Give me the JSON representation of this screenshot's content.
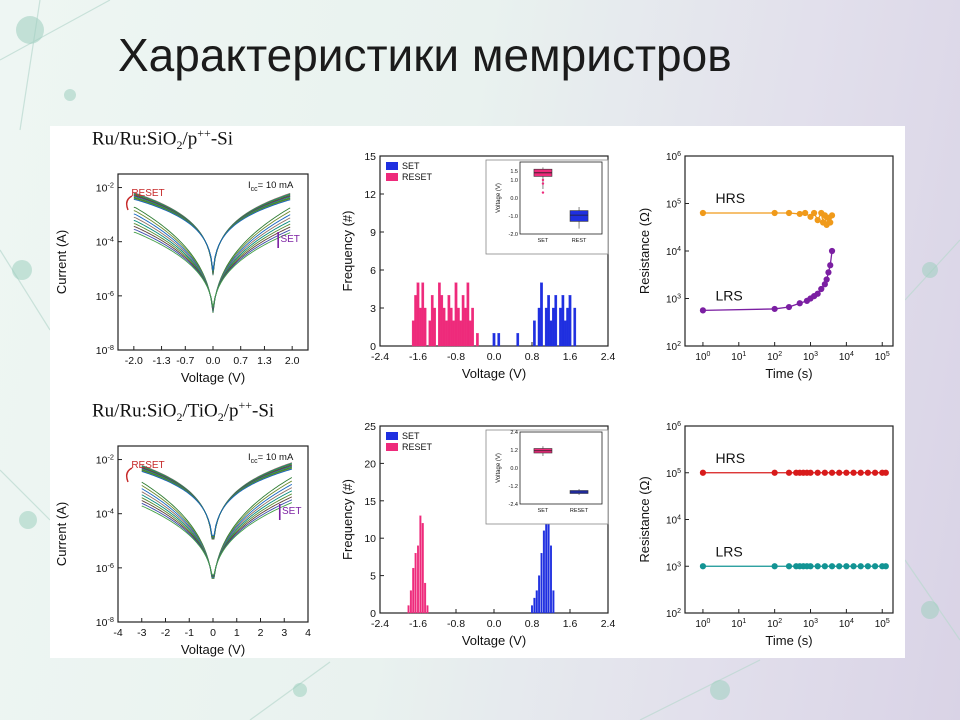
{
  "slide": {
    "title": "Характеристики мемристров"
  },
  "colors": {
    "set": "#1f2fe0",
    "reset": "#ee2a7b",
    "hrs_top": "#f09a1a",
    "lrs_top": "#7b1fa2",
    "hrs_bottom": "#d81b1b",
    "lrs_bottom": "#139494",
    "sweep": "#2e7d32"
  },
  "chart_data": [
    {
      "id": "iv_top",
      "type": "line",
      "title_parts": [
        "Ru/Ru:SiO",
        "2",
        "/p",
        "++",
        "-Si"
      ],
      "xlabel": "Voltage (V)",
      "ylabel": "Current (A)",
      "xlim": [
        -2.4,
        2.4
      ],
      "ylim_log": [
        -8,
        -1.5
      ],
      "xticks": [
        "-2.0",
        "-1.3",
        "-0.7",
        "0.0",
        "0.7",
        "1.3",
        "2.0"
      ],
      "xtick_values": [
        -2.0,
        -1.3,
        -0.7,
        0.0,
        0.7,
        1.3,
        2.0
      ],
      "yticks": [
        "10",
        "10",
        "10",
        "10"
      ],
      "ytick_exps": [
        "-8",
        "-6",
        "-4",
        "-2"
      ],
      "ytick_values": [
        -8,
        -6,
        -4,
        -2
      ],
      "compliance": {
        "prefix": "I",
        "sub": "cc",
        "suffix": "= 10 mA"
      },
      "annotations": [
        "RESET",
        "SET"
      ],
      "vset": 2.0,
      "vreset": -2.0,
      "icc_log": -2.2
    },
    {
      "id": "hist_top",
      "type": "bar",
      "xlabel": "Voltage (V)",
      "ylabel": "Frequency (#)",
      "xlim": [
        -2.4,
        2.4
      ],
      "ylim": [
        0,
        15
      ],
      "xticks": [
        "-2.4",
        "-1.6",
        "-0.8",
        "0.0",
        "0.8",
        "1.6",
        "2.4"
      ],
      "xtick_values": [
        -2.4,
        -1.6,
        -0.8,
        0.0,
        0.8,
        1.6,
        2.4
      ],
      "yticks": [
        "0",
        "3",
        "6",
        "9",
        "12",
        "15"
      ],
      "ytick_values": [
        0,
        3,
        6,
        9,
        12,
        15
      ],
      "legend": [
        "SET",
        "RESET"
      ],
      "bar_width": 0.05,
      "series": [
        {
          "name": "SET",
          "x": [
            0.0,
            0.1,
            0.5,
            0.85,
            0.95,
            1.0,
            1.1,
            1.15,
            1.2,
            1.25,
            1.3,
            1.4,
            1.45,
            1.5,
            1.55,
            1.6,
            1.7
          ],
          "y": [
            1,
            1,
            1,
            2,
            3,
            5,
            3,
            4,
            2,
            3,
            4,
            3,
            4,
            2,
            3,
            4,
            3
          ]
        },
        {
          "name": "RESET",
          "x": [
            -1.7,
            -1.65,
            -1.6,
            -1.55,
            -1.5,
            -1.45,
            -1.35,
            -1.3,
            -1.25,
            -1.15,
            -1.1,
            -1.05,
            -1.0,
            -0.95,
            -0.9,
            -0.85,
            -0.8,
            -0.75,
            -0.7,
            -0.65,
            -0.6,
            -0.55,
            -0.5,
            -0.45,
            -0.35
          ],
          "y": [
            2,
            4,
            5,
            3,
            5,
            3,
            2,
            4,
            3,
            5,
            4,
            3,
            2,
            4,
            3,
            2,
            5,
            3,
            2,
            4,
            3,
            5,
            2,
            3,
            1
          ]
        }
      ],
      "inset": {
        "xlabel_cats": [
          "SET",
          "REST"
        ],
        "ylabel": "Voltage (V)",
        "yticks": [
          "1.5",
          "1.0",
          "0.0",
          "-1.0",
          "-2.0"
        ],
        "ytick_values": [
          1.5,
          1.0,
          0.0,
          -1.0,
          -2.0
        ],
        "ylim": [
          -2.0,
          2.0
        ],
        "boxes": [
          {
            "cat": "SET",
            "q1": 1.2,
            "median": 1.4,
            "q3": 1.6,
            "min": 0.5,
            "max": 1.7,
            "outliers": [
              0.3,
              0.8,
              1.0
            ]
          },
          {
            "cat": "REST",
            "q1": -1.3,
            "median": -0.95,
            "q3": -0.7,
            "min": -1.7,
            "max": -0.5,
            "outliers": []
          }
        ]
      }
    },
    {
      "id": "ret_top",
      "type": "scatter",
      "xlabel": "Time (s)",
      "ylabel": "Resistance (Ω)",
      "xlim_log": [
        -0.5,
        5.3
      ],
      "ylim_log": [
        2,
        6
      ],
      "xticks": [
        "10",
        "10",
        "10",
        "10",
        "10",
        "10"
      ],
      "xtick_exps": [
        "0",
        "1",
        "2",
        "3",
        "4",
        "5"
      ],
      "xtick_values": [
        0,
        1,
        2,
        3,
        4,
        5
      ],
      "yticks": [
        "10",
        "10",
        "10",
        "10",
        "10"
      ],
      "ytick_exps": [
        "2",
        "3",
        "4",
        "5",
        "6"
      ],
      "ytick_values": [
        2,
        3,
        4,
        5,
        6
      ],
      "series": [
        {
          "name": "HRS",
          "log_t": [
            0,
            2,
            2.4,
            2.7,
            2.85,
            3.0,
            3.1,
            3.2,
            3.3,
            3.35,
            3.4,
            3.45,
            3.5,
            3.55,
            3.6
          ],
          "log_r": [
            4.8,
            4.8,
            4.8,
            4.78,
            4.8,
            4.72,
            4.8,
            4.65,
            4.8,
            4.6,
            4.75,
            4.55,
            4.7,
            4.6,
            4.75
          ]
        },
        {
          "name": "LRS",
          "log_t": [
            0,
            2,
            2.4,
            2.7,
            2.9,
            3.0,
            3.1,
            3.2,
            3.3,
            3.4,
            3.45,
            3.5,
            3.55,
            3.6
          ],
          "log_r": [
            2.75,
            2.78,
            2.82,
            2.9,
            2.95,
            3.0,
            3.05,
            3.1,
            3.2,
            3.3,
            3.4,
            3.55,
            3.7,
            4.0
          ]
        }
      ]
    },
    {
      "id": "iv_bottom",
      "type": "line",
      "title_parts": [
        "Ru/Ru:SiO",
        "2",
        "/TiO",
        "2",
        "/p",
        "++",
        "-Si"
      ],
      "xlabel": "Voltage (V)",
      "ylabel": "Current (A)",
      "xlim": [
        -4,
        4
      ],
      "ylim_log": [
        -8,
        -1.5
      ],
      "xticks": [
        "-4",
        "-3",
        "-2",
        "-1",
        "0",
        "1",
        "2",
        "3",
        "4"
      ],
      "xtick_values": [
        -4,
        -3,
        -2,
        -1,
        0,
        1,
        2,
        3,
        4
      ],
      "yticks": [
        "10",
        "10",
        "10",
        "10"
      ],
      "ytick_exps": [
        "-8",
        "-6",
        "-4",
        "-2"
      ],
      "ytick_values": [
        -8,
        -6,
        -4,
        -2
      ],
      "compliance": {
        "prefix": "I",
        "sub": "cc",
        "suffix": "= 10 mA"
      },
      "annotations": [
        "RESET",
        "SET"
      ],
      "vset": 3.4,
      "vreset": -3.0,
      "icc_log": -2.1
    },
    {
      "id": "hist_bottom",
      "type": "bar",
      "xlabel": "Voltage (V)",
      "ylabel": "Frequency (#)",
      "xlim": [
        -2.4,
        2.4
      ],
      "ylim": [
        0,
        25
      ],
      "xticks": [
        "-2.4",
        "-1.6",
        "-0.8",
        "0.0",
        "0.8",
        "1.6",
        "2.4"
      ],
      "xtick_values": [
        -2.4,
        -1.6,
        -0.8,
        0.0,
        0.8,
        1.6,
        2.4
      ],
      "yticks": [
        "0",
        "5",
        "10",
        "15",
        "20",
        "25"
      ],
      "ytick_values": [
        0,
        5,
        10,
        15,
        20,
        25
      ],
      "legend": [
        "SET",
        "RESET"
      ],
      "bar_width": 0.035,
      "series": [
        {
          "name": "SET",
          "x": [
            0.8,
            0.85,
            0.9,
            0.95,
            1.0,
            1.05,
            1.1,
            1.15,
            1.2,
            1.25
          ],
          "y": [
            1,
            2,
            3,
            5,
            8,
            11,
            12,
            13,
            9,
            3
          ]
        },
        {
          "name": "RESET",
          "x": [
            -1.8,
            -1.75,
            -1.7,
            -1.65,
            -1.6,
            -1.55,
            -1.5,
            -1.45,
            -1.4
          ],
          "y": [
            1,
            3,
            6,
            8,
            9,
            13,
            12,
            4,
            1
          ]
        }
      ],
      "inset": {
        "xlabel_cats": [
          "SET",
          "RESET"
        ],
        "ylabel": "Voltage (V)",
        "yticks": [
          "2.4",
          "1.2",
          "0.0",
          "-1.2",
          "-2.4"
        ],
        "ytick_values": [
          2.4,
          1.2,
          0.0,
          -1.2,
          -2.4
        ],
        "ylim": [
          -2.4,
          2.4
        ],
        "boxes": [
          {
            "cat": "SET",
            "q1": 1.0,
            "median": 1.15,
            "q3": 1.3,
            "min": 0.8,
            "max": 1.45,
            "outliers": []
          },
          {
            "cat": "RESET",
            "q1": -1.7,
            "median": -1.6,
            "q3": -1.5,
            "min": -1.8,
            "max": -1.4,
            "outliers": []
          }
        ]
      }
    },
    {
      "id": "ret_bottom",
      "type": "scatter",
      "xlabel": "Time (s)",
      "ylabel": "Resistance (Ω)",
      "xlim_log": [
        -0.5,
        5.3
      ],
      "ylim_log": [
        2,
        6
      ],
      "xticks": [
        "10",
        "10",
        "10",
        "10",
        "10",
        "10"
      ],
      "xtick_exps": [
        "0",
        "1",
        "2",
        "3",
        "4",
        "5"
      ],
      "xtick_values": [
        0,
        1,
        2,
        3,
        4,
        5
      ],
      "yticks": [
        "10",
        "10",
        "10",
        "10",
        "10"
      ],
      "ytick_exps": [
        "2",
        "3",
        "4",
        "5",
        "6"
      ],
      "ytick_values": [
        2,
        3,
        4,
        5,
        6
      ],
      "series": [
        {
          "name": "HRS",
          "log_t": [
            0,
            2,
            2.4,
            2.6,
            2.7,
            2.8,
            2.9,
            3.0,
            3.2,
            3.4,
            3.6,
            3.8,
            4.0,
            4.2,
            4.4,
            4.6,
            4.8,
            5.0,
            5.1
          ],
          "log_r": [
            5.0,
            5.0,
            5.0,
            5.0,
            5.0,
            5.0,
            5.0,
            5.0,
            5.0,
            5.0,
            5.0,
            5.0,
            5.0,
            5.0,
            5.0,
            5.0,
            5.0,
            5.0,
            5.0
          ]
        },
        {
          "name": "LRS",
          "log_t": [
            0,
            2,
            2.4,
            2.6,
            2.7,
            2.8,
            2.9,
            3.0,
            3.2,
            3.4,
            3.6,
            3.8,
            4.0,
            4.2,
            4.4,
            4.6,
            4.8,
            5.0,
            5.1
          ],
          "log_r": [
            3.0,
            3.0,
            3.0,
            3.0,
            3.0,
            3.0,
            3.0,
            3.0,
            3.0,
            3.0,
            3.0,
            3.0,
            3.0,
            3.0,
            3.0,
            3.0,
            3.0,
            3.0,
            3.0
          ]
        }
      ]
    }
  ]
}
